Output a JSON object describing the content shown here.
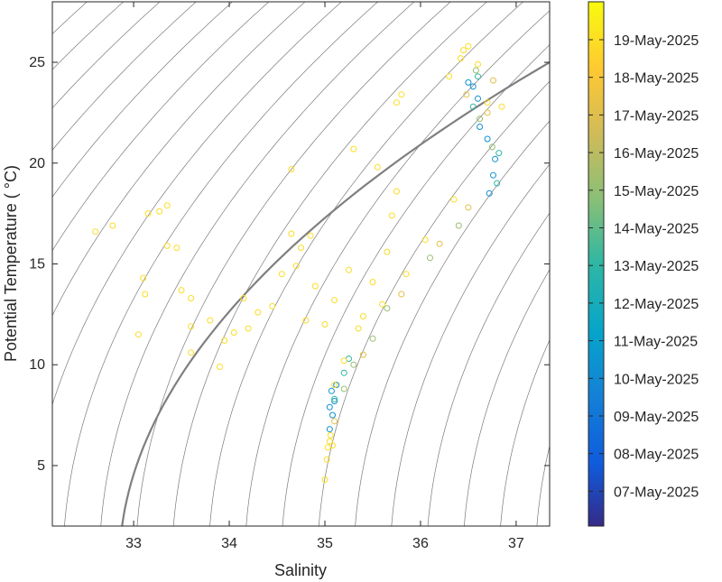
{
  "chart_data": {
    "type": "scatter",
    "title": "",
    "xlabel": "Salinity",
    "ylabel": "Potential Temperature ( °C)",
    "xlim": [
      32.15,
      37.35
    ],
    "ylim": [
      2.0,
      28.0
    ],
    "xticks": [
      33,
      34,
      35,
      36,
      37
    ],
    "yticks": [
      5,
      10,
      15,
      20,
      25
    ],
    "grid": false,
    "background_contours": "density isolines (thin gray), one highlighted isoline (thick gray)",
    "colorbar": {
      "colormap": "parula",
      "labels": [
        "07-May-2025",
        "08-May-2025",
        "09-May-2025",
        "10-May-2025",
        "11-May-2025",
        "12-May-2025",
        "13-May-2025",
        "14-May-2025",
        "15-May-2025",
        "16-May-2025",
        "17-May-2025",
        "18-May-2025",
        "19-May-2025"
      ],
      "label_positions": [
        0.93,
        0.83,
        0.73,
        0.63,
        0.53,
        0.43,
        0.33,
        0.23,
        0.13,
        0.03,
        -0.07,
        -0.17,
        -0.27
      ],
      "placement": "right"
    },
    "series": [
      {
        "color_index": 0.3,
        "points": [
          [
            35.05,
            6.8
          ],
          [
            35.08,
            7.5
          ],
          [
            35.1,
            8.2
          ],
          [
            35.05,
            7.9
          ],
          [
            35.12,
            9.0
          ],
          [
            35.07,
            8.7
          ],
          [
            36.72,
            18.5
          ],
          [
            36.76,
            19.4
          ],
          [
            36.78,
            20.2
          ],
          [
            36.7,
            21.2
          ],
          [
            36.62,
            21.8
          ],
          [
            36.6,
            23.2
          ],
          [
            36.55,
            23.8
          ],
          [
            36.5,
            24.0
          ]
        ]
      },
      {
        "color_index": 0.5,
        "points": [
          [
            35.1,
            8.3
          ],
          [
            35.2,
            9.6
          ],
          [
            35.25,
            10.3
          ],
          [
            36.8,
            19.0
          ],
          [
            36.82,
            20.5
          ],
          [
            36.55,
            22.8
          ],
          [
            36.6,
            24.3
          ]
        ]
      },
      {
        "color_index": 0.65,
        "points": [
          [
            35.2,
            8.8
          ],
          [
            35.3,
            10.0
          ],
          [
            35.5,
            11.3
          ],
          [
            35.65,
            12.8
          ],
          [
            36.1,
            15.3
          ],
          [
            36.4,
            16.9
          ],
          [
            36.75,
            20.8
          ],
          [
            36.62,
            22.2
          ],
          [
            36.58,
            24.6
          ]
        ]
      },
      {
        "color_index": 0.8,
        "points": [
          [
            35.1,
            7.2
          ],
          [
            35.4,
            10.5
          ],
          [
            35.8,
            13.5
          ],
          [
            36.2,
            16.0
          ],
          [
            36.5,
            17.8
          ],
          [
            36.7,
            22.5
          ],
          [
            36.48,
            23.4
          ],
          [
            36.76,
            24.1
          ]
        ]
      },
      {
        "color_index": 0.92,
        "points": [
          [
            32.6,
            16.6
          ],
          [
            32.78,
            16.9
          ],
          [
            33.15,
            17.5
          ],
          [
            33.27,
            17.6
          ],
          [
            33.35,
            17.9
          ],
          [
            33.1,
            14.3
          ],
          [
            33.12,
            13.5
          ],
          [
            33.05,
            11.5
          ],
          [
            33.35,
            15.9
          ],
          [
            33.45,
            15.8
          ],
          [
            33.5,
            13.7
          ],
          [
            33.6,
            13.3
          ],
          [
            33.6,
            10.6
          ],
          [
            33.6,
            11.9
          ],
          [
            33.8,
            12.2
          ],
          [
            33.9,
            9.9
          ],
          [
            33.95,
            11.2
          ],
          [
            34.05,
            11.6
          ],
          [
            34.15,
            13.3
          ],
          [
            34.2,
            11.8
          ],
          [
            34.3,
            12.6
          ],
          [
            34.45,
            12.9
          ],
          [
            34.55,
            14.5
          ],
          [
            34.65,
            16.5
          ],
          [
            34.65,
            19.7
          ],
          [
            34.75,
            15.8
          ],
          [
            34.85,
            16.4
          ],
          [
            34.7,
            14.9
          ],
          [
            34.8,
            12.2
          ],
          [
            34.9,
            13.9
          ],
          [
            35.0,
            12.0
          ],
          [
            35.1,
            13.2
          ],
          [
            35.25,
            14.7
          ],
          [
            35.3,
            20.7
          ],
          [
            35.55,
            19.8
          ],
          [
            35.75,
            23.0
          ],
          [
            35.8,
            23.4
          ],
          [
            35.7,
            17.4
          ],
          [
            35.75,
            18.6
          ],
          [
            35.5,
            14.1
          ],
          [
            35.65,
            15.6
          ],
          [
            35.4,
            12.4
          ],
          [
            36.3,
            24.3
          ],
          [
            36.45,
            25.6
          ],
          [
            36.42,
            25.2
          ],
          [
            36.5,
            25.8
          ],
          [
            36.6,
            24.9
          ],
          [
            36.7,
            23.0
          ],
          [
            36.85,
            22.8
          ],
          [
            36.35,
            18.2
          ],
          [
            36.05,
            16.2
          ],
          [
            35.85,
            14.5
          ],
          [
            35.6,
            13.0
          ],
          [
            35.35,
            11.8
          ],
          [
            35.2,
            10.2
          ],
          [
            35.1,
            9.0
          ],
          [
            35.02,
            5.3
          ],
          [
            35.0,
            4.3
          ],
          [
            35.03,
            5.9
          ],
          [
            35.05,
            6.2
          ],
          [
            35.08,
            6.0
          ],
          [
            35.06,
            6.5
          ]
        ]
      }
    ]
  }
}
